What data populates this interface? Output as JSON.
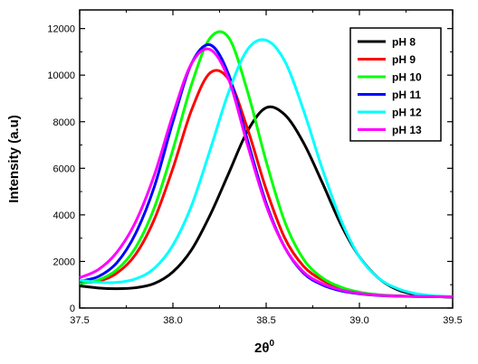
{
  "chart_data": {
    "type": "line",
    "xlabel": "2θ",
    "xlabel_base": "2θ",
    "xlabel_sup": "0",
    "ylabel": "Intensity (a.u)",
    "xlim": [
      37.5,
      39.5
    ],
    "ylim": [
      0,
      12800
    ],
    "x_ticks": [
      37.5,
      38.0,
      38.5,
      39.0,
      39.5
    ],
    "x_tick_labels": [
      "37.5",
      "38.0",
      "38.5",
      "39.0",
      "39.5"
    ],
    "y_ticks": [
      0,
      2000,
      4000,
      6000,
      8000,
      10000,
      12000
    ],
    "y_tick_labels": [
      "0",
      "2000",
      "4000",
      "6000",
      "8000",
      "10000",
      "12000"
    ],
    "grid": false,
    "legend_position": "top-right",
    "series": [
      {
        "name": "pH 8",
        "color": "#000000",
        "x": [
          37.5,
          37.6,
          37.7,
          37.8,
          37.9,
          38.0,
          38.1,
          38.2,
          38.3,
          38.4,
          38.5,
          38.6,
          38.7,
          38.8,
          38.9,
          39.0,
          39.1,
          39.2,
          39.3,
          39.4,
          39.5
        ],
        "y": [
          950,
          860,
          830,
          870,
          1050,
          1550,
          2500,
          4000,
          5800,
          7600,
          8600,
          8300,
          7100,
          5400,
          3600,
          2200,
          1300,
          800,
          580,
          500,
          460
        ]
      },
      {
        "name": "pH 9",
        "color": "#ff0000",
        "x": [
          37.5,
          37.6,
          37.7,
          37.8,
          37.9,
          38.0,
          38.1,
          38.2,
          38.3,
          38.4,
          38.5,
          38.6,
          38.7,
          38.8,
          38.9,
          39.0,
          39.1,
          39.2,
          39.3,
          39.4,
          39.5
        ],
        "y": [
          1100,
          1150,
          1500,
          2300,
          3800,
          6000,
          8500,
          10100,
          9800,
          7700,
          5100,
          3000,
          1800,
          1200,
          850,
          650,
          560,
          520,
          500,
          490,
          480
        ]
      },
      {
        "name": "pH 10",
        "color": "#00ff00",
        "x": [
          37.5,
          37.6,
          37.7,
          37.8,
          37.9,
          38.0,
          38.1,
          38.2,
          38.3,
          38.4,
          38.5,
          38.6,
          38.7,
          38.8,
          38.9,
          39.0,
          39.1,
          39.2,
          39.3,
          39.4,
          39.5
        ],
        "y": [
          1050,
          1200,
          1650,
          2600,
          4300,
          6800,
          9600,
          11600,
          11600,
          9300,
          6300,
          3700,
          2100,
          1300,
          900,
          680,
          570,
          520,
          500,
          490,
          480
        ]
      },
      {
        "name": "pH 11",
        "color": "#0000ff",
        "x": [
          37.5,
          37.6,
          37.7,
          37.8,
          37.9,
          38.0,
          38.1,
          38.2,
          38.3,
          38.4,
          38.5,
          38.6,
          38.7,
          38.8,
          38.9,
          39.0,
          39.1,
          39.2,
          39.3,
          39.4,
          39.5
        ],
        "y": [
          1150,
          1350,
          1950,
          3200,
          5200,
          8000,
          10500,
          11300,
          10000,
          7200,
          4500,
          2600,
          1500,
          1000,
          740,
          610,
          540,
          510,
          495,
          485,
          480
        ]
      },
      {
        "name": "pH 12",
        "color": "#00ffff",
        "x": [
          37.5,
          37.6,
          37.7,
          37.8,
          37.9,
          38.0,
          38.1,
          38.2,
          38.3,
          38.4,
          38.5,
          38.6,
          38.7,
          38.8,
          38.9,
          39.0,
          39.1,
          39.2,
          39.3,
          39.4,
          39.5
        ],
        "y": [
          1200,
          1100,
          1100,
          1250,
          1700,
          2700,
          4400,
          6800,
          9300,
          11100,
          11500,
          10600,
          8500,
          6000,
          3800,
          2200,
          1300,
          850,
          620,
          520,
          480
        ]
      },
      {
        "name": "pH 13",
        "color": "#ff00ff",
        "x": [
          37.5,
          37.6,
          37.7,
          37.8,
          37.9,
          38.0,
          38.1,
          38.2,
          38.3,
          38.4,
          38.5,
          38.6,
          38.7,
          38.8,
          38.9,
          39.0,
          39.1,
          39.2,
          39.3,
          39.4,
          39.5
        ],
        "y": [
          1300,
          1650,
          2400,
          3700,
          5700,
          8300,
          10500,
          11100,
          9800,
          7000,
          4400,
          2600,
          1550,
          1050,
          780,
          630,
          550,
          515,
          500,
          490,
          480
        ]
      }
    ]
  }
}
